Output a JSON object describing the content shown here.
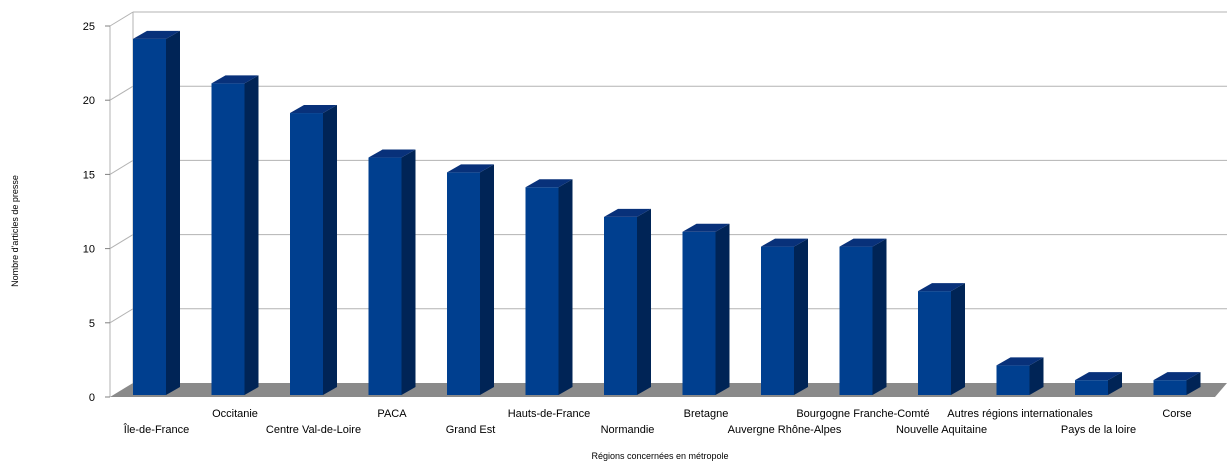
{
  "chart_data": {
    "type": "bar",
    "title": "",
    "xlabel": "Régions concernées en métropole",
    "ylabel": "Nombre d'articles de presse",
    "ylim": [
      0,
      25
    ],
    "yticks": [
      0,
      5,
      10,
      15,
      20,
      25
    ],
    "grid": true,
    "legend": "none",
    "categories": [
      "Île-de-France",
      "Occitanie",
      "Centre Val-de-Loire",
      "PACA",
      "Grand Est",
      "Hauts-de-France",
      "Normandie",
      "Bretagne",
      "Auvergne Rhône-Alpes",
      "Bourgogne Franche-Comté",
      "Nouvelle Aquitaine",
      "Autres régions internationales",
      "Pays de la loire",
      "Corse"
    ],
    "values": [
      24,
      21,
      19,
      16,
      15,
      14,
      12,
      11,
      10,
      10,
      7,
      2,
      1,
      1
    ],
    "colors": {
      "bar_front": "#003f8f",
      "bar_side": "#002456",
      "bar_top": "#08317a",
      "floor": "#8a8a8a",
      "wall": "#ffffff",
      "grid": "#b3b3b3"
    }
  }
}
